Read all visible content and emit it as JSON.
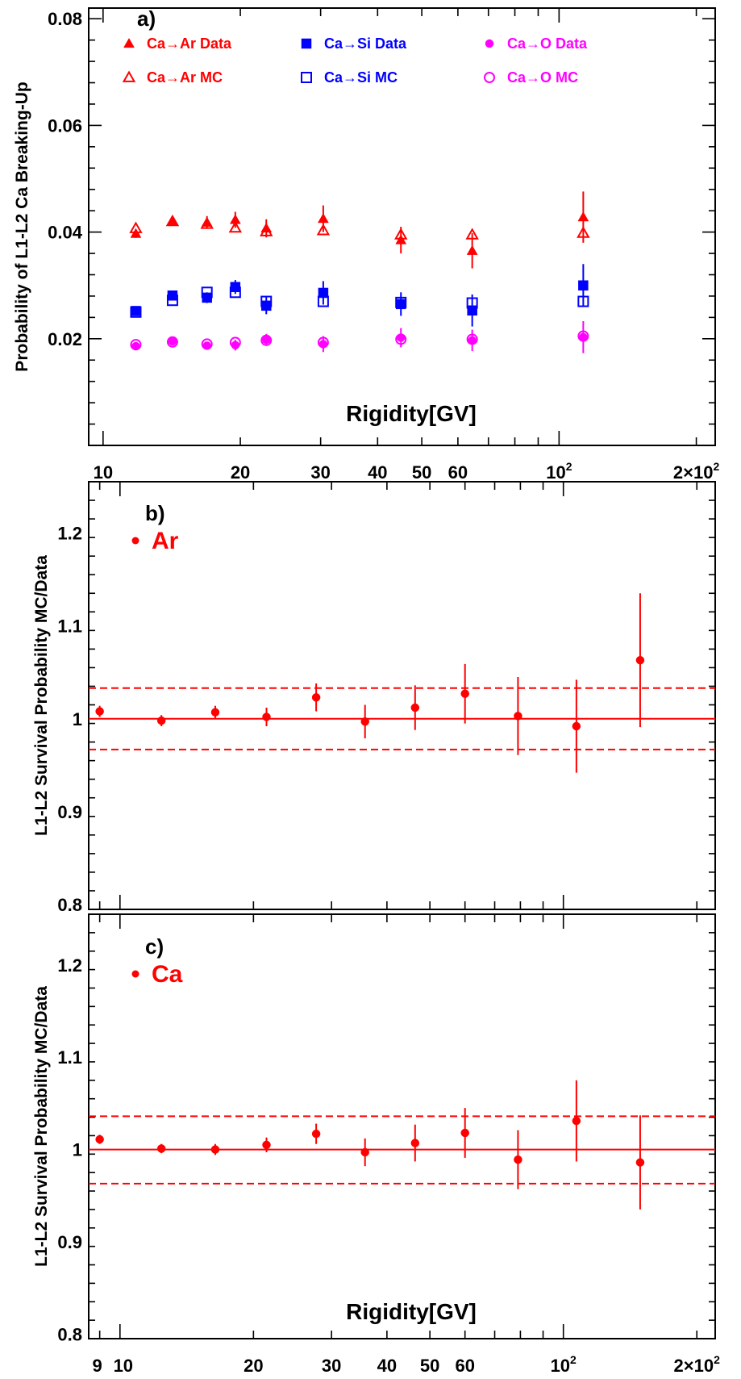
{
  "chart_data": [
    {
      "panel": "a)",
      "type": "scatter",
      "ylabel": "Probability of L1-L2 Ca Breaking-Up",
      "xlabel": "Rigidity[GV]",
      "xscale": "log",
      "xlim": [
        9.3,
        220
      ],
      "ylim": [
        0.0,
        0.082
      ],
      "yticks": [
        {
          "v": 0.02,
          "label": "0.02"
        },
        {
          "v": 0.04,
          "label": "0.04"
        },
        {
          "v": 0.06,
          "label": "0.06"
        },
        {
          "v": 0.08,
          "label": "0.08"
        }
      ],
      "xticks": [
        {
          "v": 10,
          "label": "10"
        },
        {
          "v": 20,
          "label": "20"
        },
        {
          "v": 30,
          "label": "30"
        },
        {
          "v": 40,
          "label": "40"
        },
        {
          "v": 50,
          "label": "50"
        },
        {
          "v": 60,
          "label": "60"
        },
        {
          "v": 100,
          "label": "10",
          "sup": "2"
        },
        {
          "v": 200,
          "label": "2×10",
          "sup": "2"
        }
      ],
      "legend_rows": 2,
      "series": [
        {
          "name": "Ca→Ar Data",
          "color": "#ff0000",
          "marker": "triangle-filled",
          "x": [
            11.8,
            14.2,
            16.9,
            19.5,
            22.8,
            30.4,
            45.0,
            64.5,
            113.0
          ],
          "y": [
            0.0397,
            0.0421,
            0.0418,
            0.0423,
            0.0407,
            0.0425,
            0.0385,
            0.0365,
            0.0428
          ],
          "err": [
            0.0008,
            0.0009,
            0.0012,
            0.0015,
            0.0017,
            0.0025,
            0.0025,
            0.0033,
            0.0048
          ]
        },
        {
          "name": "Ca→Ar MC",
          "color": "#ff0000",
          "marker": "triangle-open",
          "x": [
            11.8,
            14.2,
            16.9,
            19.5,
            22.8,
            30.4,
            45.0,
            64.5,
            113.0
          ],
          "y": [
            0.0407,
            0.042,
            0.0415,
            0.0408,
            0.0401,
            0.0403,
            0.0395,
            0.0395,
            0.0398
          ],
          "err": [
            0.0,
            0.0,
            0.0,
            0.0,
            0.0,
            0.0,
            0.0,
            0.0,
            0.0
          ]
        },
        {
          "name": "Ca→Si Data",
          "color": "#0000ff",
          "marker": "square-filled",
          "x": [
            11.8,
            14.2,
            16.9,
            19.5,
            22.8,
            30.4,
            45.0,
            64.5,
            113.0
          ],
          "y": [
            0.0252,
            0.0281,
            0.0277,
            0.0297,
            0.0262,
            0.0286,
            0.0265,
            0.0253,
            0.03
          ],
          "err": [
            0.0006,
            0.0008,
            0.001,
            0.0013,
            0.0016,
            0.0022,
            0.0022,
            0.003,
            0.004
          ]
        },
        {
          "name": "Ca→Si MC",
          "color": "#0000ff",
          "marker": "square-open",
          "x": [
            11.8,
            14.2,
            16.9,
            19.5,
            22.8,
            30.4,
            45.0,
            64.5,
            113.0
          ],
          "y": [
            0.025,
            0.0272,
            0.0287,
            0.0287,
            0.027,
            0.027,
            0.0268,
            0.0267,
            0.027
          ],
          "err": [
            0.0,
            0.0,
            0.0,
            0.0,
            0.0,
            0.0,
            0.0,
            0.0,
            0.0
          ]
        },
        {
          "name": "Ca→O Data",
          "color": "#ff00ff",
          "marker": "circle-filled",
          "x": [
            11.8,
            14.2,
            16.9,
            19.5,
            22.8,
            30.4,
            45.0,
            64.5,
            113.0
          ],
          "y": [
            0.0186,
            0.0195,
            0.0187,
            0.0188,
            0.0198,
            0.019,
            0.0202,
            0.0197,
            0.0203
          ],
          "err": [
            0.0005,
            0.0006,
            0.0007,
            0.001,
            0.0011,
            0.0015,
            0.0018,
            0.002,
            0.003
          ]
        },
        {
          "name": "Ca→O MC",
          "color": "#ff00ff",
          "marker": "circle-open",
          "x": [
            11.8,
            14.2,
            16.9,
            19.5,
            22.8,
            30.4,
            45.0,
            64.5,
            113.0
          ],
          "y": [
            0.0189,
            0.0194,
            0.019,
            0.0193,
            0.0197,
            0.0193,
            0.0199,
            0.0199,
            0.0205
          ],
          "err": [
            0.0,
            0.0,
            0.0,
            0.0,
            0.0,
            0.0,
            0.0,
            0.0,
            0.0
          ]
        }
      ]
    },
    {
      "panel": "b)",
      "type": "scatter",
      "ylabel": "L1-L2 Survival Probability  MC/Data",
      "xlabel": "",
      "xscale": "log",
      "xlim": [
        8.5,
        220
      ],
      "ylim": [
        0.795,
        1.255
      ],
      "yticks": [
        {
          "v": 0.8,
          "label": "0.8"
        },
        {
          "v": 0.9,
          "label": "0.9"
        },
        {
          "v": 1.0,
          "label": "1"
        },
        {
          "v": 1.1,
          "label": "1.1"
        },
        {
          "v": 1.2,
          "label": "1.2"
        }
      ],
      "xticks": [],
      "reference_line": 1.0,
      "band": [
        0.967,
        1.033
      ],
      "series": [
        {
          "name": "Ar",
          "color": "#ff0000",
          "marker": "circle-filled",
          "x": [
            9.0,
            12.4,
            16.4,
            21.4,
            27.7,
            35.7,
            46.3,
            60.0,
            79.0,
            107.0,
            149.0
          ],
          "y": [
            1.008,
            0.998,
            1.007,
            1.002,
            1.023,
            0.997,
            1.012,
            1.027,
            1.003,
            0.992,
            1.063
          ],
          "err": [
            0.006,
            0.006,
            0.007,
            0.01,
            0.015,
            0.018,
            0.024,
            0.032,
            0.042,
            0.05,
            0.072
          ]
        }
      ]
    },
    {
      "panel": "c)",
      "type": "scatter",
      "ylabel": "L1-L2 Survival Probability  MC/Data",
      "xlabel": "Rigidity[GV]",
      "xscale": "log",
      "xlim": [
        8.5,
        220
      ],
      "ylim": [
        0.795,
        1.255
      ],
      "yticks": [
        {
          "v": 0.8,
          "label": "0.8"
        },
        {
          "v": 0.9,
          "label": "0.9"
        },
        {
          "v": 1.0,
          "label": "1"
        },
        {
          "v": 1.1,
          "label": "1.1"
        },
        {
          "v": 1.2,
          "label": "1.2"
        }
      ],
      "xticks": [
        {
          "v": 9,
          "label": "9"
        },
        {
          "v": 10,
          "label": "10"
        },
        {
          "v": 20,
          "label": "20"
        },
        {
          "v": 30,
          "label": "30"
        },
        {
          "v": 40,
          "label": "40"
        },
        {
          "v": 50,
          "label": "50"
        },
        {
          "v": 60,
          "label": "60"
        },
        {
          "v": 100,
          "label": "10",
          "sup": "2"
        },
        {
          "v": 200,
          "label": "2×10",
          "sup": "2"
        }
      ],
      "reference_line": 1.0,
      "band": [
        0.963,
        1.036
      ],
      "series": [
        {
          "name": "Ca",
          "color": "#ff0000",
          "marker": "circle-filled",
          "x": [
            9.0,
            12.4,
            16.4,
            21.4,
            27.7,
            35.7,
            46.3,
            60.0,
            79.0,
            107.0,
            149.0
          ],
          "y": [
            1.011,
            1.001,
            1.0,
            1.005,
            1.017,
            0.997,
            1.007,
            1.018,
            0.989,
            1.031,
            0.986
          ],
          "err": [
            0.005,
            0.005,
            0.006,
            0.008,
            0.011,
            0.015,
            0.02,
            0.027,
            0.032,
            0.044,
            0.051
          ]
        }
      ]
    }
  ]
}
